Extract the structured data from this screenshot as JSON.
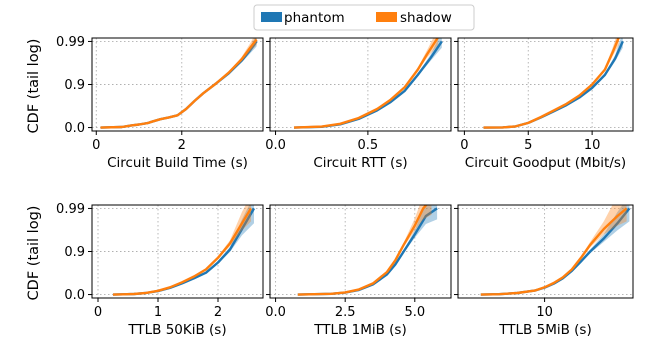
{
  "legend": {
    "entries": [
      {
        "name": "phantom",
        "color": "#1f77b4"
      },
      {
        "name": "shadow",
        "color": "#ff7f0e"
      }
    ]
  },
  "row_ylabels": [
    "CDF (tail log)",
    "CDF (tail log)"
  ],
  "y_axis": {
    "scale": "tail-log",
    "ticks": [
      0.0,
      0.9,
      0.99
    ],
    "tick_labels": [
      "0.0",
      "0.9",
      "0.99"
    ]
  },
  "chart_data": [
    {
      "type": "line",
      "xlabel": "Circuit Build Time (s)",
      "xlim": [
        -0.1,
        3.9
      ],
      "xticks": [
        0,
        2
      ],
      "xtick_labels": [
        "0",
        "2"
      ],
      "grid": true,
      "series": [
        {
          "name": "phantom",
          "band": 0.003,
          "x": [
            0.1,
            0.6,
            0.8,
            1.0,
            1.2,
            1.3,
            1.5,
            1.7,
            1.9,
            2.1,
            2.3,
            2.5,
            2.8,
            3.1,
            3.4,
            3.6,
            3.75
          ],
          "y": [
            0.0,
            0.03,
            0.1,
            0.15,
            0.21,
            0.27,
            0.36,
            0.42,
            0.48,
            0.63,
            0.76,
            0.84,
            0.905,
            0.945,
            0.972,
            0.984,
            0.99
          ]
        },
        {
          "name": "shadow",
          "band": 0.003,
          "x": [
            0.1,
            0.6,
            0.8,
            1.0,
            1.2,
            1.3,
            1.5,
            1.7,
            1.9,
            2.1,
            2.3,
            2.5,
            2.8,
            3.1,
            3.4,
            3.6,
            3.75
          ],
          "y": [
            0.0,
            0.03,
            0.1,
            0.15,
            0.21,
            0.27,
            0.36,
            0.42,
            0.48,
            0.63,
            0.76,
            0.84,
            0.905,
            0.947,
            0.974,
            0.986,
            0.991
          ]
        }
      ]
    },
    {
      "type": "line",
      "xlabel": "Circuit RTT (s)",
      "xlim": [
        -0.03,
        0.95
      ],
      "xticks": [
        0.0,
        0.5
      ],
      "xtick_labels": [
        "0.0",
        "0.5"
      ],
      "grid": true,
      "series": [
        {
          "name": "phantom",
          "band": 0.004,
          "x": [
            0.1,
            0.25,
            0.35,
            0.45,
            0.55,
            0.62,
            0.7,
            0.77,
            0.84,
            0.9
          ],
          "y": [
            0.0,
            0.04,
            0.16,
            0.37,
            0.6,
            0.74,
            0.86,
            0.94,
            0.976,
            0.99
          ]
        },
        {
          "name": "shadow",
          "band": 0.004,
          "x": [
            0.1,
            0.25,
            0.35,
            0.45,
            0.55,
            0.62,
            0.7,
            0.77,
            0.82,
            0.88
          ],
          "y": [
            0.0,
            0.05,
            0.18,
            0.4,
            0.63,
            0.77,
            0.885,
            0.955,
            0.98,
            0.992
          ]
        }
      ]
    },
    {
      "type": "line",
      "xlabel": "Circuit Goodput (Mbit/s)",
      "xlim": [
        -0.5,
        13.2
      ],
      "xticks": [
        0,
        5,
        10
      ],
      "xtick_labels": [
        "0",
        "5",
        "10"
      ],
      "grid": true,
      "series": [
        {
          "name": "phantom",
          "band": 0.004,
          "x": [
            1.5,
            3.0,
            4.0,
            5.0,
            6.0,
            7.0,
            8.0,
            9.0,
            10.0,
            11.0,
            11.8,
            12.4
          ],
          "y": [
            0.0,
            0.01,
            0.06,
            0.22,
            0.42,
            0.58,
            0.7,
            0.8,
            0.88,
            0.94,
            0.975,
            0.99
          ]
        },
        {
          "name": "shadow",
          "band": 0.004,
          "x": [
            1.5,
            3.0,
            4.0,
            5.0,
            6.0,
            7.0,
            8.0,
            9.0,
            10.0,
            11.0,
            11.6,
            12.1
          ],
          "y": [
            0.0,
            0.01,
            0.06,
            0.22,
            0.43,
            0.6,
            0.72,
            0.82,
            0.9,
            0.955,
            0.982,
            0.992
          ]
        }
      ]
    },
    {
      "type": "line",
      "xlabel": "TTLB 50KiB (s)",
      "xlim": [
        -0.1,
        2.75
      ],
      "xticks": [
        0,
        1,
        2
      ],
      "xtick_labels": [
        "0",
        "1",
        "2"
      ],
      "grid": true,
      "series": [
        {
          "name": "phantom",
          "band": 0.012,
          "x": [
            0.25,
            0.6,
            0.8,
            1.0,
            1.2,
            1.4,
            1.6,
            1.8,
            2.0,
            2.2,
            2.4,
            2.6
          ],
          "y": [
            0.0,
            0.03,
            0.08,
            0.17,
            0.3,
            0.45,
            0.58,
            0.69,
            0.82,
            0.91,
            0.97,
            0.99
          ]
        },
        {
          "name": "shadow",
          "band": 0.01,
          "x": [
            0.25,
            0.6,
            0.8,
            1.0,
            1.2,
            1.4,
            1.6,
            1.8,
            2.0,
            2.2,
            2.4,
            2.55
          ],
          "y": [
            0.0,
            0.03,
            0.085,
            0.18,
            0.32,
            0.48,
            0.62,
            0.74,
            0.86,
            0.935,
            0.978,
            0.99
          ]
        }
      ]
    },
    {
      "type": "line",
      "xlabel": "TTLB 1MiB (s)",
      "xlim": [
        -0.2,
        6.3
      ],
      "xticks": [
        0.0,
        2.5,
        5.0
      ],
      "xtick_labels": [
        "0.0",
        "2.5",
        "5.0"
      ],
      "grid": true,
      "series": [
        {
          "name": "phantom",
          "band": 0.008,
          "x": [
            0.8,
            2.0,
            2.5,
            3.0,
            3.5,
            4.0,
            4.3,
            4.6,
            5.0,
            5.4,
            5.8
          ],
          "y": [
            0.0,
            0.04,
            0.1,
            0.22,
            0.42,
            0.66,
            0.8,
            0.9,
            0.96,
            0.985,
            0.99
          ]
        },
        {
          "name": "shadow",
          "band": 0.008,
          "x": [
            0.8,
            2.0,
            2.5,
            3.0,
            3.5,
            4.0,
            4.3,
            4.6,
            5.0,
            5.3,
            5.6
          ],
          "y": [
            0.0,
            0.04,
            0.11,
            0.24,
            0.45,
            0.7,
            0.84,
            0.93,
            0.975,
            0.99,
            0.994
          ]
        }
      ]
    },
    {
      "type": "line",
      "xlabel": "TTLB 5MiB (s)",
      "xlim": [
        0.5,
        19.7
      ],
      "xticks": [
        10
      ],
      "xtick_labels": [
        "10"
      ],
      "grid": true,
      "series": [
        {
          "name": "phantom",
          "band": 0.01,
          "x": [
            3.0,
            5.0,
            7.0,
            9.0,
            10.0,
            11.0,
            12.0,
            13.0,
            14.0,
            15.0,
            16.5,
            18.0,
            19.3
          ],
          "y": [
            0.0,
            0.02,
            0.08,
            0.2,
            0.31,
            0.44,
            0.58,
            0.72,
            0.83,
            0.9,
            0.95,
            0.978,
            0.99
          ]
        },
        {
          "name": "shadow",
          "band": 0.01,
          "x": [
            3.0,
            5.0,
            7.0,
            9.0,
            10.0,
            11.0,
            12.0,
            13.0,
            14.0,
            15.0,
            16.5,
            18.0,
            19.0
          ],
          "y": [
            0.0,
            0.02,
            0.08,
            0.2,
            0.32,
            0.46,
            0.6,
            0.74,
            0.86,
            0.93,
            0.97,
            0.985,
            0.99
          ]
        }
      ]
    }
  ]
}
